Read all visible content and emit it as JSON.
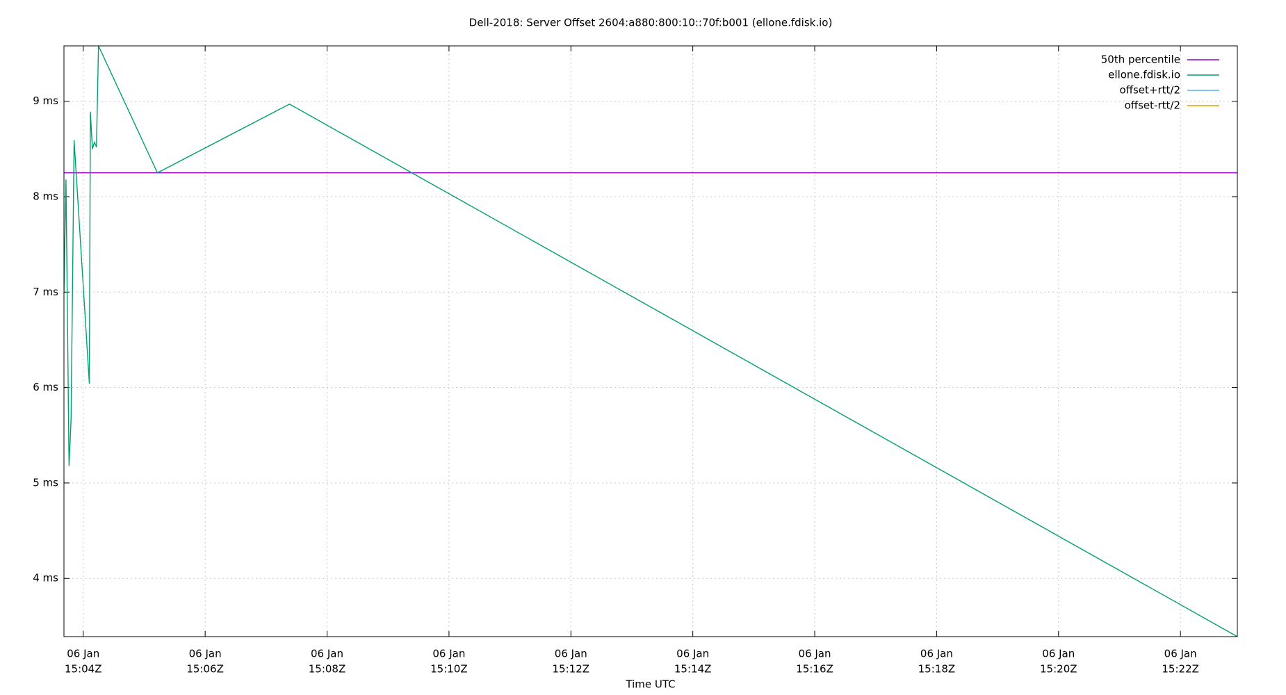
{
  "chart_data": {
    "type": "line",
    "title": "Dell-2018: Server Offset 2604:a880:800:10::70f:b001 (ellone.fdisk.io)",
    "x_label": "Time UTC",
    "xlim": [
      "15:03:41",
      "15:22:56"
    ],
    "xticks": [
      {
        "value": "15:04:00",
        "label": [
          "06 Jan",
          "15:04Z"
        ]
      },
      {
        "value": "15:06:00",
        "label": [
          "06 Jan",
          "15:06Z"
        ]
      },
      {
        "value": "15:08:00",
        "label": [
          "06 Jan",
          "15:08Z"
        ]
      },
      {
        "value": "15:10:00",
        "label": [
          "06 Jan",
          "15:10Z"
        ]
      },
      {
        "value": "15:12:00",
        "label": [
          "06 Jan",
          "15:12Z"
        ]
      },
      {
        "value": "15:14:00",
        "label": [
          "06 Jan",
          "15:14Z"
        ]
      },
      {
        "value": "15:16:00",
        "label": [
          "06 Jan",
          "15:16Z"
        ]
      },
      {
        "value": "15:18:00",
        "label": [
          "06 Jan",
          "15:18Z"
        ]
      },
      {
        "value": "15:20:00",
        "label": [
          "06 Jan",
          "15:20Z"
        ]
      },
      {
        "value": "15:22:00",
        "label": [
          "06 Jan",
          "15:22Z"
        ]
      }
    ],
    "ylim": [
      3.39,
      9.58
    ],
    "yticks": [
      {
        "value": 4,
        "label": "4 ms"
      },
      {
        "value": 5,
        "label": "5 ms"
      },
      {
        "value": 6,
        "label": "6 ms"
      },
      {
        "value": 7,
        "label": "7 ms"
      },
      {
        "value": 8,
        "label": "8 ms"
      },
      {
        "value": 9,
        "label": "9 ms"
      }
    ],
    "grid": true,
    "legend": "top-right",
    "series": [
      {
        "name": "50th percentile",
        "color": "#9400d3",
        "x": [
          "15:03:41",
          "15:22:56"
        ],
        "values": [
          8.25,
          8.25
        ]
      },
      {
        "name": "ellone.fdisk.io",
        "color": "#009e73",
        "x": [
          "15:03:41",
          "15:03:43",
          "15:03:46",
          "15:03:48",
          "15:03:51",
          "15:04:06",
          "15:04:07",
          "15:04:09",
          "15:04:11",
          "15:04:13",
          "15:04:15",
          "15:05:13",
          "15:07:23",
          "15:22:56"
        ],
        "values": [
          7.0,
          8.18,
          5.18,
          5.66,
          8.59,
          6.04,
          8.89,
          8.5,
          8.57,
          8.52,
          9.58,
          8.25,
          8.97,
          3.39
        ]
      },
      {
        "name": "offset+rtt/2",
        "color": "#56b4e9",
        "x": [],
        "values": []
      },
      {
        "name": "offset-rtt/2",
        "color": "#e69f00",
        "x": [],
        "values": []
      }
    ]
  }
}
